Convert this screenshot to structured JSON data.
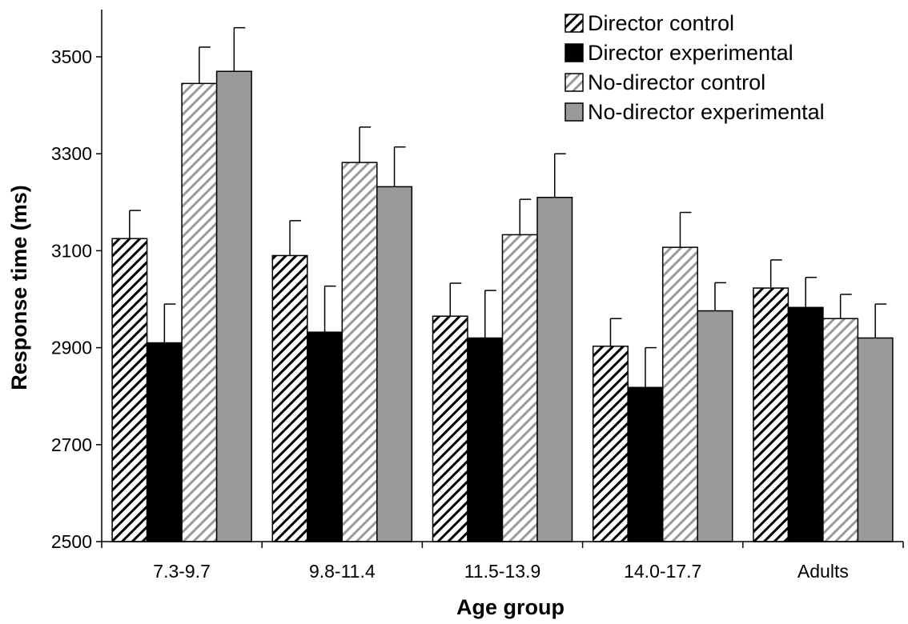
{
  "chart_data": {
    "type": "bar",
    "xlabel": "Age group",
    "ylabel": "Response time (ms)",
    "ylim": [
      2500,
      3500
    ],
    "yticks": [
      2500,
      2700,
      2900,
      3100,
      3300,
      3500
    ],
    "grid": false,
    "legend_position": "top-right",
    "categories": [
      "7.3-9.7",
      "9.8-11.4",
      "11.5-13.9",
      "14.0-17.7",
      "Adults"
    ],
    "series": [
      {
        "name": "Director control",
        "fill": "hatch",
        "color": "#000000",
        "values": [
          3125,
          3090,
          2965,
          2903,
          3023
        ],
        "errors": [
          58,
          72,
          68,
          57,
          58
        ]
      },
      {
        "name": "Director experimental",
        "fill": "solid",
        "color": "#000000",
        "values": [
          2910,
          2932,
          2920,
          2818,
          2983
        ],
        "errors": [
          80,
          95,
          98,
          82,
          62
        ]
      },
      {
        "name": "No-director control",
        "fill": "hatch",
        "color": "#9a9a9a",
        "values": [
          3445,
          3282,
          3133,
          3107,
          2960
        ],
        "errors": [
          75,
          73,
          73,
          72,
          50
        ]
      },
      {
        "name": "No-director experimental",
        "fill": "solid",
        "color": "#9a9a9a",
        "values": [
          3470,
          3232,
          3210,
          2976,
          2920
        ],
        "errors": [
          90,
          82,
          90,
          58,
          70
        ]
      }
    ]
  }
}
